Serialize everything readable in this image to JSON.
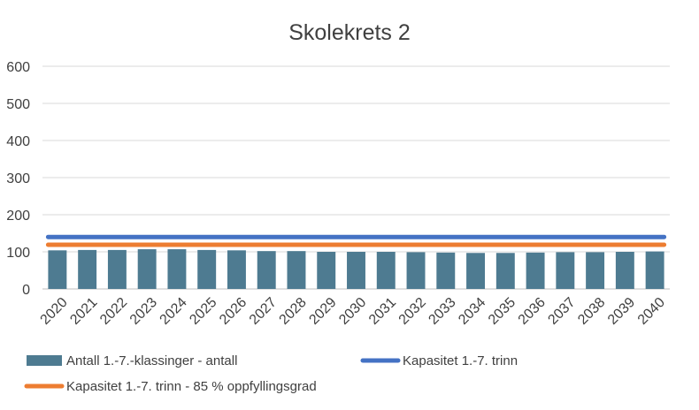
{
  "chart_data": {
    "type": "bar",
    "title": "Skolekrets 2",
    "xlabel": "",
    "ylabel": "",
    "ylim": [
      0,
      600
    ],
    "yticks": [
      0,
      100,
      200,
      300,
      400,
      500,
      600
    ],
    "grid": true,
    "legend_position": "bottom",
    "categories": [
      "2020",
      "2021",
      "2022",
      "2023",
      "2024",
      "2025",
      "2026",
      "2027",
      "2028",
      "2029",
      "2030",
      "2031",
      "2032",
      "2033",
      "2034",
      "2035",
      "2036",
      "2037",
      "2038",
      "2039",
      "2040"
    ],
    "series": [
      {
        "name": "Antall 1.-7.-klassinger - antall",
        "kind": "bar",
        "color": "#4e7b91",
        "values": [
          104,
          105,
          105,
          107,
          107,
          105,
          104,
          102,
          102,
          100,
          100,
          100,
          99,
          98,
          97,
          97,
          98,
          99,
          99,
          100,
          101
        ]
      },
      {
        "name": "Kapasitet 1.-7. trinn",
        "kind": "line",
        "color": "#4472c4",
        "values": [
          140,
          140,
          140,
          140,
          140,
          140,
          140,
          140,
          140,
          140,
          140,
          140,
          140,
          140,
          140,
          140,
          140,
          140,
          140,
          140,
          140
        ]
      },
      {
        "name": "Kapasitet 1.-7. trinn - 85 % oppfyllingsgrad",
        "kind": "line",
        "color": "#ed7d31",
        "values": [
          119,
          119,
          119,
          119,
          119,
          119,
          119,
          119,
          119,
          119,
          119,
          119,
          119,
          119,
          119,
          119,
          119,
          119,
          119,
          119,
          119
        ]
      }
    ]
  }
}
